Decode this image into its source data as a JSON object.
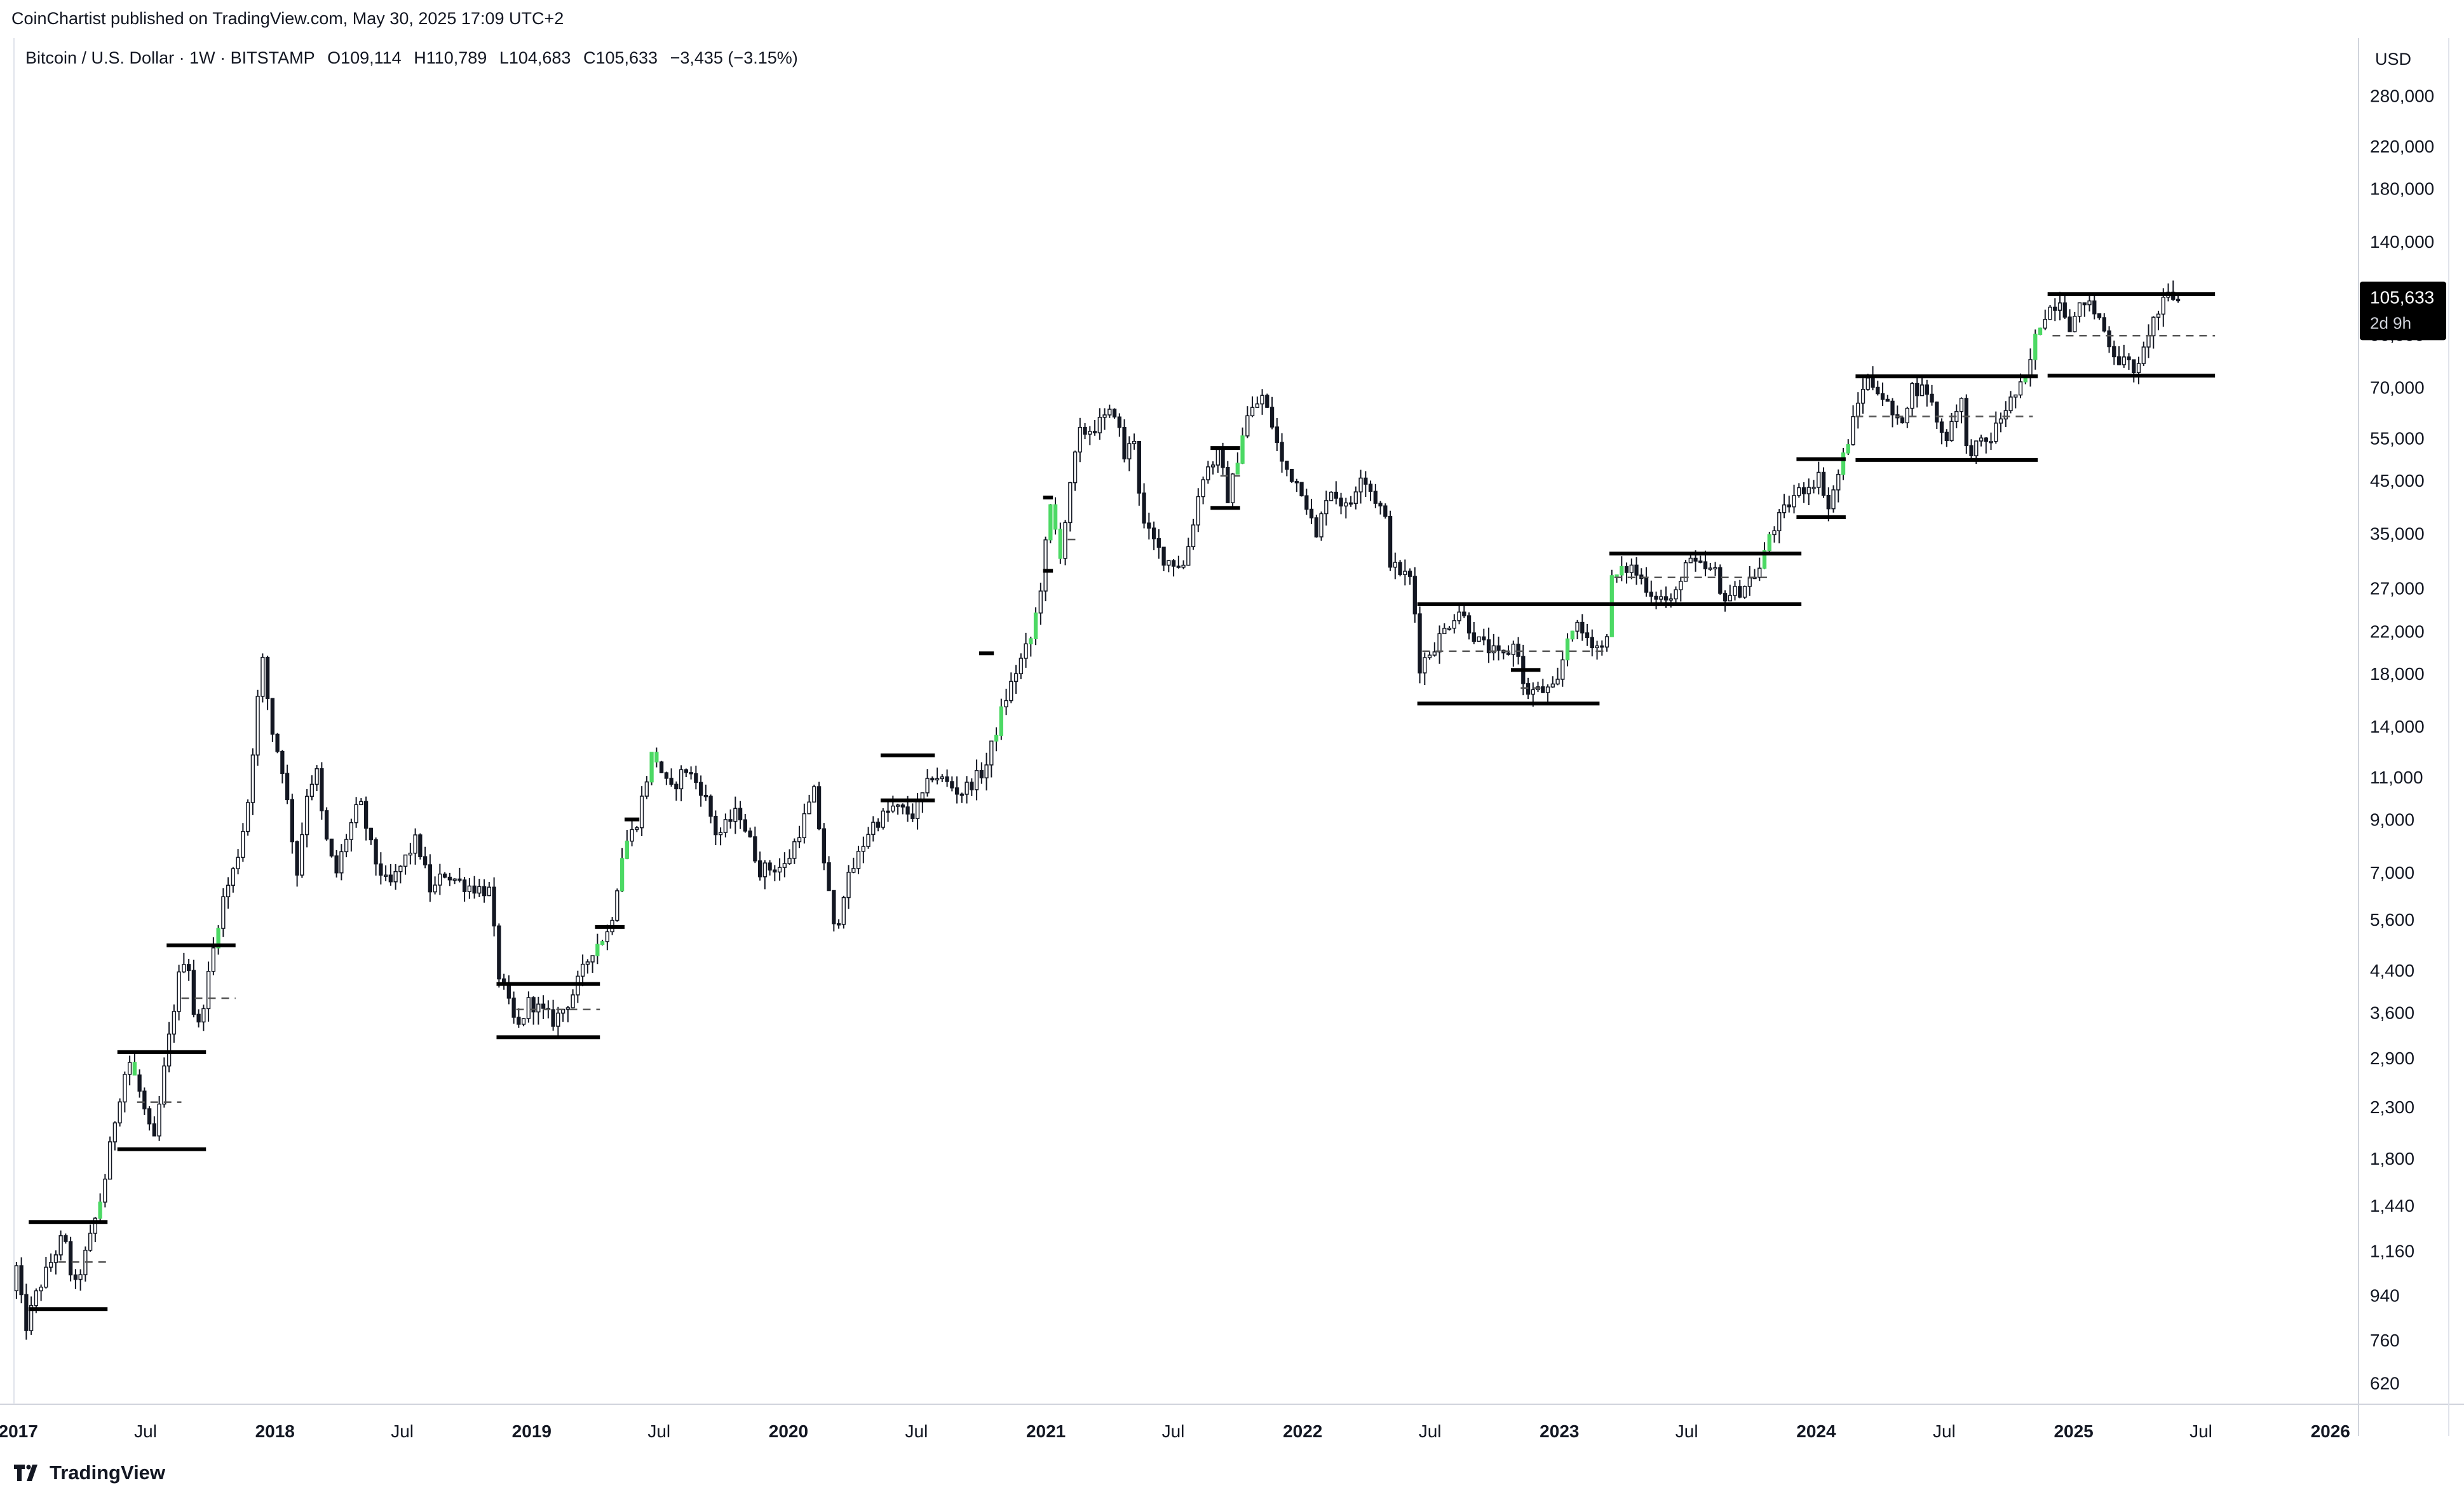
{
  "header": {
    "published": "CoinChartist published on TradingView.com, May 30, 2025 17:09 UTC+2"
  },
  "legend": {
    "symbol": "Bitcoin / U.S. Dollar · 1W · BITSTAMP",
    "open": "O109,114",
    "high": "H110,789",
    "low": "L104,683",
    "close": "C105,633",
    "change": "−3,435 (−3.15%)"
  },
  "price_axis": {
    "currency": "USD",
    "ticks": [
      "280,000",
      "220,000",
      "180,000",
      "140,000",
      "90,000",
      "70,000",
      "55,000",
      "45,000",
      "35,000",
      "27,000",
      "22,000",
      "18,000",
      "14,000",
      "11,000",
      "9,000",
      "7,000",
      "5,600",
      "4,400",
      "3,600",
      "2,900",
      "2,300",
      "1,800",
      "1,440",
      "1,160",
      "940",
      "760",
      "620"
    ]
  },
  "last_price": {
    "value": "105,633",
    "countdown": "2d 9h"
  },
  "time_axis": {
    "labels": [
      "2017",
      "Jul",
      "2018",
      "Jul",
      "2019",
      "Jul",
      "2020",
      "Jul",
      "2021",
      "Jul",
      "2022",
      "Jul",
      "2023",
      "Jul",
      "2024",
      "Jul",
      "2025",
      "Jul",
      "2026"
    ]
  },
  "brand": {
    "name": "TradingView"
  },
  "colors": {
    "candle_up": "#ffffff",
    "candle_down": "#131722",
    "highlight": "#4cd964",
    "line": "#000000",
    "axis_text": "#131722",
    "label_bg": "#000000"
  },
  "chart_data": {
    "type": "candlestick",
    "title": "Bitcoin / U.S. Dollar · 1W · BITSTAMP",
    "xlabel": "",
    "ylabel": "USD",
    "y_scale": "log",
    "ylim": [
      560,
      320000
    ],
    "x_range": [
      "2016-12-26",
      "2026-02-10"
    ],
    "grid": false,
    "price_path": [
      [
        "2016-12-26",
        960
      ],
      [
        "2017-01-05",
        1120
      ],
      [
        "2017-01-12",
        780
      ],
      [
        "2017-02-01",
        960
      ],
      [
        "2017-02-20",
        1100
      ],
      [
        "2017-03-10",
        1250
      ],
      [
        "2017-03-25",
        960
      ],
      [
        "2017-04-15",
        1200
      ],
      [
        "2017-05-05",
        1550
      ],
      [
        "2017-05-25",
        2300
      ],
      [
        "2017-06-10",
        2900
      ],
      [
        "2017-06-25",
        2500
      ],
      [
        "2017-07-16",
        1900
      ],
      [
        "2017-08-01",
        2800
      ],
      [
        "2017-08-20",
        4200
      ],
      [
        "2017-09-01",
        4900
      ],
      [
        "2017-09-15",
        3200
      ],
      [
        "2017-10-05",
        4500
      ],
      [
        "2017-10-20",
        6000
      ],
      [
        "2017-11-10",
        7300
      ],
      [
        "2017-11-26",
        9500
      ],
      [
        "2017-12-05",
        13000
      ],
      [
        "2017-12-17",
        19500
      ],
      [
        "2017-12-31",
        13800
      ],
      [
        "2018-01-15",
        11500
      ],
      [
        "2018-02-05",
        7000
      ],
      [
        "2018-02-20",
        10500
      ],
      [
        "2018-03-05",
        11200
      ],
      [
        "2018-03-15",
        8500
      ],
      [
        "2018-04-01",
        6900
      ],
      [
        "2018-04-15",
        8200
      ],
      [
        "2018-05-05",
        9800
      ],
      [
        "2018-05-25",
        7500
      ],
      [
        "2018-06-15",
        6500
      ],
      [
        "2018-07-25",
        8200
      ],
      [
        "2018-08-15",
        6300
      ],
      [
        "2018-09-01",
        7000
      ],
      [
        "2018-10-01",
        6600
      ],
      [
        "2018-11-05",
        6400
      ],
      [
        "2018-11-19",
        4300
      ],
      [
        "2018-12-15",
        3300
      ],
      [
        "2019-01-01",
        3800
      ],
      [
        "2019-02-05",
        3450
      ],
      [
        "2019-03-01",
        3850
      ],
      [
        "2019-04-02",
        4900
      ],
      [
        "2019-04-25",
        5300
      ],
      [
        "2019-05-15",
        7900
      ],
      [
        "2019-06-01",
        8700
      ],
      [
        "2019-06-26",
        12500
      ],
      [
        "2019-07-20",
        10200
      ],
      [
        "2019-08-10",
        11500
      ],
      [
        "2019-09-05",
        10300
      ],
      [
        "2019-09-25",
        8300
      ],
      [
        "2019-10-26",
        9400
      ],
      [
        "2019-11-25",
        7100
      ],
      [
        "2019-12-31",
        7200
      ],
      [
        "2020-02-10",
        10200
      ],
      [
        "2020-03-12",
        5000
      ],
      [
        "2020-03-19",
        6200
      ],
      [
        "2020-04-30",
        8700
      ],
      [
        "2020-06-01",
        9500
      ],
      [
        "2020-07-01",
        9200
      ],
      [
        "2020-07-28",
        11200
      ],
      [
        "2020-09-05",
        10200
      ],
      [
        "2020-10-10",
        11400
      ],
      [
        "2020-11-05",
        15500
      ],
      [
        "2020-11-25",
        18500
      ],
      [
        "2020-12-16",
        21500
      ],
      [
        "2020-12-31",
        29000
      ],
      [
        "2021-01-10",
        40000
      ],
      [
        "2021-01-25",
        32000
      ],
      [
        "2021-02-20",
        56000
      ],
      [
        "2021-03-15",
        58000
      ],
      [
        "2021-04-14",
        63000
      ],
      [
        "2021-04-25",
        50000
      ],
      [
        "2021-05-12",
        56000
      ],
      [
        "2021-05-20",
        37000
      ],
      [
        "2021-06-22",
        31000
      ],
      [
        "2021-07-20",
        30000
      ],
      [
        "2021-08-15",
        46000
      ],
      [
        "2021-09-07",
        51000
      ],
      [
        "2021-09-21",
        41000
      ],
      [
        "2021-10-15",
        60000
      ],
      [
        "2021-11-08",
        67000
      ],
      [
        "2021-11-25",
        57000
      ],
      [
        "2021-12-05",
        49000
      ],
      [
        "2022-01-05",
        43000
      ],
      [
        "2022-01-24",
        34000
      ],
      [
        "2022-02-10",
        44000
      ],
      [
        "2022-03-10",
        39000
      ],
      [
        "2022-03-28",
        47000
      ],
      [
        "2022-05-01",
        38000
      ],
      [
        "2022-05-10",
        30000
      ],
      [
        "2022-06-10",
        28000
      ],
      [
        "2022-06-18",
        18500
      ],
      [
        "2022-07-10",
        20500
      ],
      [
        "2022-08-14",
        24500
      ],
      [
        "2022-09-10",
        21000
      ],
      [
        "2022-10-15",
        19300
      ],
      [
        "2022-11-05",
        21000
      ],
      [
        "2022-11-15",
        16500
      ],
      [
        "2022-12-31",
        16600
      ],
      [
        "2023-01-20",
        22800
      ],
      [
        "2023-03-10",
        20000
      ],
      [
        "2023-03-20",
        28000
      ],
      [
        "2023-04-15",
        30000
      ],
      [
        "2023-05-15",
        26500
      ],
      [
        "2023-06-15",
        25000
      ],
      [
        "2023-07-01",
        30500
      ],
      [
        "2023-08-15",
        29000
      ],
      [
        "2023-08-20",
        26000
      ],
      [
        "2023-09-15",
        26500
      ],
      [
        "2023-10-20",
        30000
      ],
      [
        "2023-10-28",
        34500
      ],
      [
        "2023-12-05",
        42000
      ],
      [
        "2024-01-10",
        46000
      ],
      [
        "2024-01-22",
        39500
      ],
      [
        "2024-02-15",
        52000
      ],
      [
        "2024-03-14",
        73000
      ],
      [
        "2024-04-01",
        70000
      ],
      [
        "2024-05-01",
        58000
      ],
      [
        "2024-05-20",
        70000
      ],
      [
        "2024-06-10",
        69000
      ],
      [
        "2024-07-05",
        54000
      ],
      [
        "2024-07-28",
        68000
      ],
      [
        "2024-08-05",
        52000
      ],
      [
        "2024-09-06",
        54000
      ],
      [
        "2024-10-01",
        64000
      ],
      [
        "2024-10-28",
        72000
      ],
      [
        "2024-11-11",
        88000
      ],
      [
        "2024-11-22",
        99000
      ],
      [
        "2024-12-17",
        107000
      ],
      [
        "2024-12-31",
        93500
      ],
      [
        "2025-01-20",
        106000
      ],
      [
        "2025-02-10",
        97000
      ],
      [
        "2025-02-28",
        84000
      ],
      [
        "2025-03-10",
        80000
      ],
      [
        "2025-04-08",
        76000
      ],
      [
        "2025-04-22",
        93000
      ],
      [
        "2025-05-22",
        110000
      ],
      [
        "2025-05-30",
        105633
      ]
    ],
    "highlighted_breakouts": [
      "2017-04-24",
      "2017-06-12",
      "2017-10-09",
      "2019-04-01",
      "2019-04-08",
      "2019-05-06",
      "2019-05-13",
      "2019-06-17",
      "2019-06-24",
      "2020-10-19",
      "2020-10-26",
      "2020-12-07",
      "2020-12-14",
      "2021-01-04",
      "2021-01-11",
      "2021-01-18",
      "2021-09-27",
      "2021-10-04",
      "2023-01-09",
      "2023-01-16",
      "2023-03-13",
      "2023-03-20",
      "2023-03-27",
      "2023-10-16",
      "2023-10-23",
      "2024-02-05",
      "2024-02-12",
      "2024-10-21",
      "2024-11-04",
      "2024-11-11"
    ],
    "ranges": [
      {
        "start": "2017-01-16",
        "end": "2017-05-08",
        "top": 1330,
        "bottom": 880
      },
      {
        "start": "2017-05-22",
        "end": "2017-09-25",
        "top": 2980,
        "bottom": 1880
      },
      {
        "start": "2017-07-31",
        "end": "2017-11-06",
        "top": 4950
      },
      {
        "start": "2018-11-12",
        "end": "2019-04-08",
        "top": 4120,
        "bottom": 3200
      },
      {
        "start": "2019-04-01",
        "end": "2019-05-13",
        "top": 5400
      },
      {
        "start": "2019-05-13",
        "end": "2019-06-03",
        "top": 9000
      },
      {
        "start": "2020-05-11",
        "end": "2020-07-27",
        "top": 12200,
        "bottom": 9850
      },
      {
        "start": "2020-09-28",
        "end": "2020-10-19",
        "top": 19800
      },
      {
        "start": "2020-12-28",
        "end": "2021-01-11",
        "top": 41500,
        "bottom": 29300
      },
      {
        "start": "2021-08-23",
        "end": "2021-10-04",
        "top": 52500,
        "bottom": 39500
      },
      {
        "start": "2022-06-13",
        "end": "2023-03-13",
        "top": 25000
      },
      {
        "start": "2022-06-13",
        "end": "2023-02-27",
        "bottom": 15600
      },
      {
        "start": "2022-10-24",
        "end": "2022-12-05",
        "top": 18300
      },
      {
        "start": "2023-03-13",
        "end": "2023-12-11",
        "top": 31800,
        "bottom": 25000
      },
      {
        "start": "2023-12-04",
        "end": "2024-02-12",
        "top": 49800,
        "bottom": 37800
      },
      {
        "start": "2024-02-26",
        "end": "2024-11-11",
        "top": 73800,
        "bottom": 49600
      },
      {
        "start": "2024-11-25",
        "end": "2025-07-21",
        "top": 109000,
        "bottom": 74000
      }
    ],
    "midlines": [
      {
        "start": "2017-02-27",
        "end": "2017-05-08",
        "value": 1100
      },
      {
        "start": "2017-06-19",
        "end": "2017-08-21",
        "value": 2350
      },
      {
        "start": "2017-08-21",
        "end": "2017-11-06",
        "value": 3850
      },
      {
        "start": "2018-12-10",
        "end": "2019-04-08",
        "value": 3650
      },
      {
        "start": "2021-02-01",
        "end": "2021-02-15",
        "value": 34000
      },
      {
        "start": "2021-09-06",
        "end": "2021-10-04",
        "value": 46000
      },
      {
        "start": "2022-06-20",
        "end": "2023-03-06",
        "value": 20000
      },
      {
        "start": "2022-11-07",
        "end": "2022-12-05",
        "value": 16800
      },
      {
        "start": "2023-03-20",
        "end": "2023-10-23",
        "value": 28400
      },
      {
        "start": "2024-02-26",
        "end": "2024-11-04",
        "value": 61000
      },
      {
        "start": "2024-12-02",
        "end": "2025-07-21",
        "value": 89500
      }
    ]
  }
}
